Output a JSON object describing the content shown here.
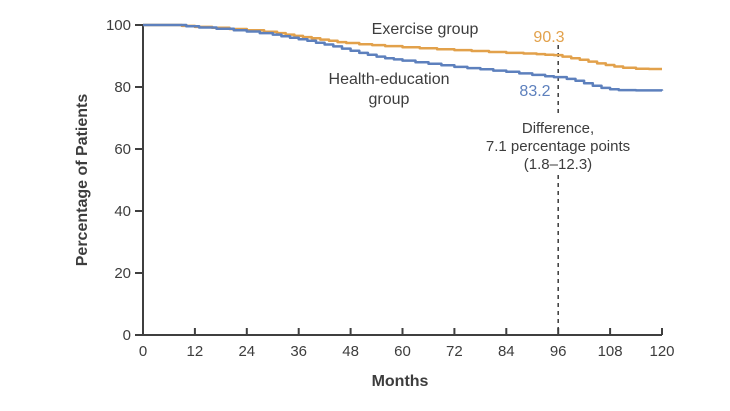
{
  "colors": {
    "exercise": "#E2A14B",
    "health_education": "#5D80BD",
    "text": "#3D3D3D",
    "axis": "#3F3F3F",
    "dashed_line": "#3A3A3A",
    "background": "#FFFFFF"
  },
  "chart_data": {
    "type": "line",
    "subtype": "kaplan-meier-step",
    "title": "",
    "xlabel": "Months",
    "ylabel": "Percentage of Patients",
    "xlim": [
      0,
      120
    ],
    "ylim": [
      0,
      100
    ],
    "x_ticks": [
      0,
      12,
      24,
      36,
      48,
      60,
      72,
      84,
      96,
      108,
      120
    ],
    "y_ticks": [
      0,
      20,
      40,
      60,
      80,
      100
    ],
    "grid": false,
    "legend_position": "inline-labels",
    "reference_line": {
      "x": 96,
      "style": "dashed"
    },
    "annotation": {
      "x": 96,
      "lines": [
        "Difference,",
        "7.1 percentage points",
        "(1.8–12.3)"
      ]
    },
    "series": [
      {
        "name": "Exercise group",
        "value_label": "90.3",
        "value_at_reference": 90.3,
        "color_key": "exercise",
        "points": [
          [
            0,
            100
          ],
          [
            7,
            100
          ],
          [
            9,
            99.7
          ],
          [
            12,
            99.4
          ],
          [
            16,
            99.1
          ],
          [
            20,
            98.7
          ],
          [
            24,
            98.3
          ],
          [
            28,
            97.8
          ],
          [
            31,
            97.4
          ],
          [
            33,
            96.9
          ],
          [
            35,
            96.5
          ],
          [
            37,
            96.1
          ],
          [
            39,
            95.7
          ],
          [
            41,
            95.3
          ],
          [
            43,
            94.9
          ],
          [
            45,
            94.5
          ],
          [
            47,
            94.2
          ],
          [
            50,
            93.8
          ],
          [
            53,
            93.5
          ],
          [
            56,
            93.2
          ],
          [
            60,
            92.8
          ],
          [
            64,
            92.5
          ],
          [
            68,
            92.2
          ],
          [
            72,
            91.9
          ],
          [
            76,
            91.6
          ],
          [
            80,
            91.3
          ],
          [
            84,
            91.0
          ],
          [
            88,
            90.8
          ],
          [
            91,
            90.6
          ],
          [
            93,
            90.4
          ],
          [
            95,
            90.3
          ],
          [
            97,
            89.8
          ],
          [
            99,
            89.3
          ],
          [
            101,
            88.8
          ],
          [
            103,
            88.2
          ],
          [
            105,
            87.6
          ],
          [
            107,
            87.1
          ],
          [
            109,
            86.6
          ],
          [
            111,
            86.2
          ],
          [
            114,
            85.9
          ],
          [
            117,
            85.8
          ],
          [
            120,
            85.8
          ]
        ]
      },
      {
        "name": "Health-education group",
        "name_lines": [
          "Health-education",
          "group"
        ],
        "value_label": "83.2",
        "value_at_reference": 83.2,
        "color_key": "health_education",
        "points": [
          [
            0,
            100
          ],
          [
            7,
            100
          ],
          [
            10,
            99.6
          ],
          [
            13,
            99.2
          ],
          [
            17,
            98.8
          ],
          [
            21,
            98.3
          ],
          [
            24,
            97.9
          ],
          [
            27,
            97.4
          ],
          [
            30,
            96.9
          ],
          [
            32,
            96.4
          ],
          [
            34,
            95.9
          ],
          [
            36,
            95.4
          ],
          [
            38,
            94.9
          ],
          [
            40,
            94.3
          ],
          [
            42,
            93.7
          ],
          [
            44,
            93.1
          ],
          [
            46,
            92.4
          ],
          [
            48,
            91.7
          ],
          [
            50,
            91.0
          ],
          [
            52,
            90.4
          ],
          [
            54,
            89.8
          ],
          [
            56,
            89.3
          ],
          [
            58,
            88.9
          ],
          [
            60,
            88.5
          ],
          [
            63,
            88.0
          ],
          [
            66,
            87.5
          ],
          [
            69,
            87.0
          ],
          [
            72,
            86.5
          ],
          [
            75,
            86.1
          ],
          [
            78,
            85.7
          ],
          [
            81,
            85.3
          ],
          [
            84,
            84.9
          ],
          [
            87,
            84.4
          ],
          [
            90,
            83.9
          ],
          [
            93,
            83.5
          ],
          [
            95,
            83.2
          ],
          [
            98,
            82.6
          ],
          [
            100,
            82.0
          ],
          [
            102,
            81.2
          ],
          [
            104,
            80.4
          ],
          [
            106,
            79.7
          ],
          [
            108,
            79.3
          ],
          [
            110,
            79.0
          ],
          [
            114,
            78.9
          ],
          [
            120,
            78.8
          ]
        ]
      }
    ]
  }
}
